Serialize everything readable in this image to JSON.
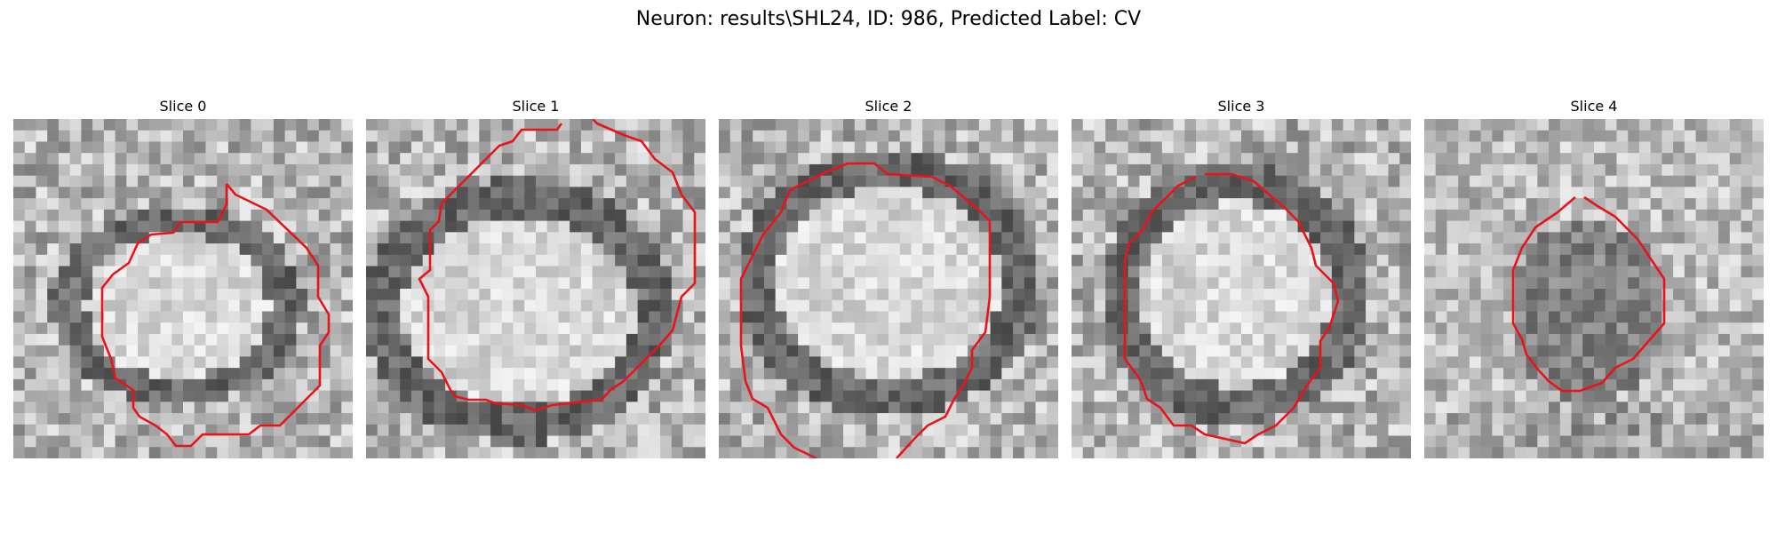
{
  "figure": {
    "title": "Neuron: results\\SHL24, ID: 986, Predicted Label: CV"
  },
  "panels": [
    {
      "title": "Slice 0",
      "seed": 11,
      "variant": "bright-center"
    },
    {
      "title": "Slice 1",
      "seed": 23,
      "variant": "bright-center"
    },
    {
      "title": "Slice 2",
      "seed": 37,
      "variant": "bright-center"
    },
    {
      "title": "Slice 3",
      "seed": 41,
      "variant": "bright-center"
    },
    {
      "title": "Slice 4",
      "seed": 53,
      "variant": "dark-center"
    }
  ],
  "colors": {
    "contour": "#e8141b",
    "background": "#ffffff"
  }
}
